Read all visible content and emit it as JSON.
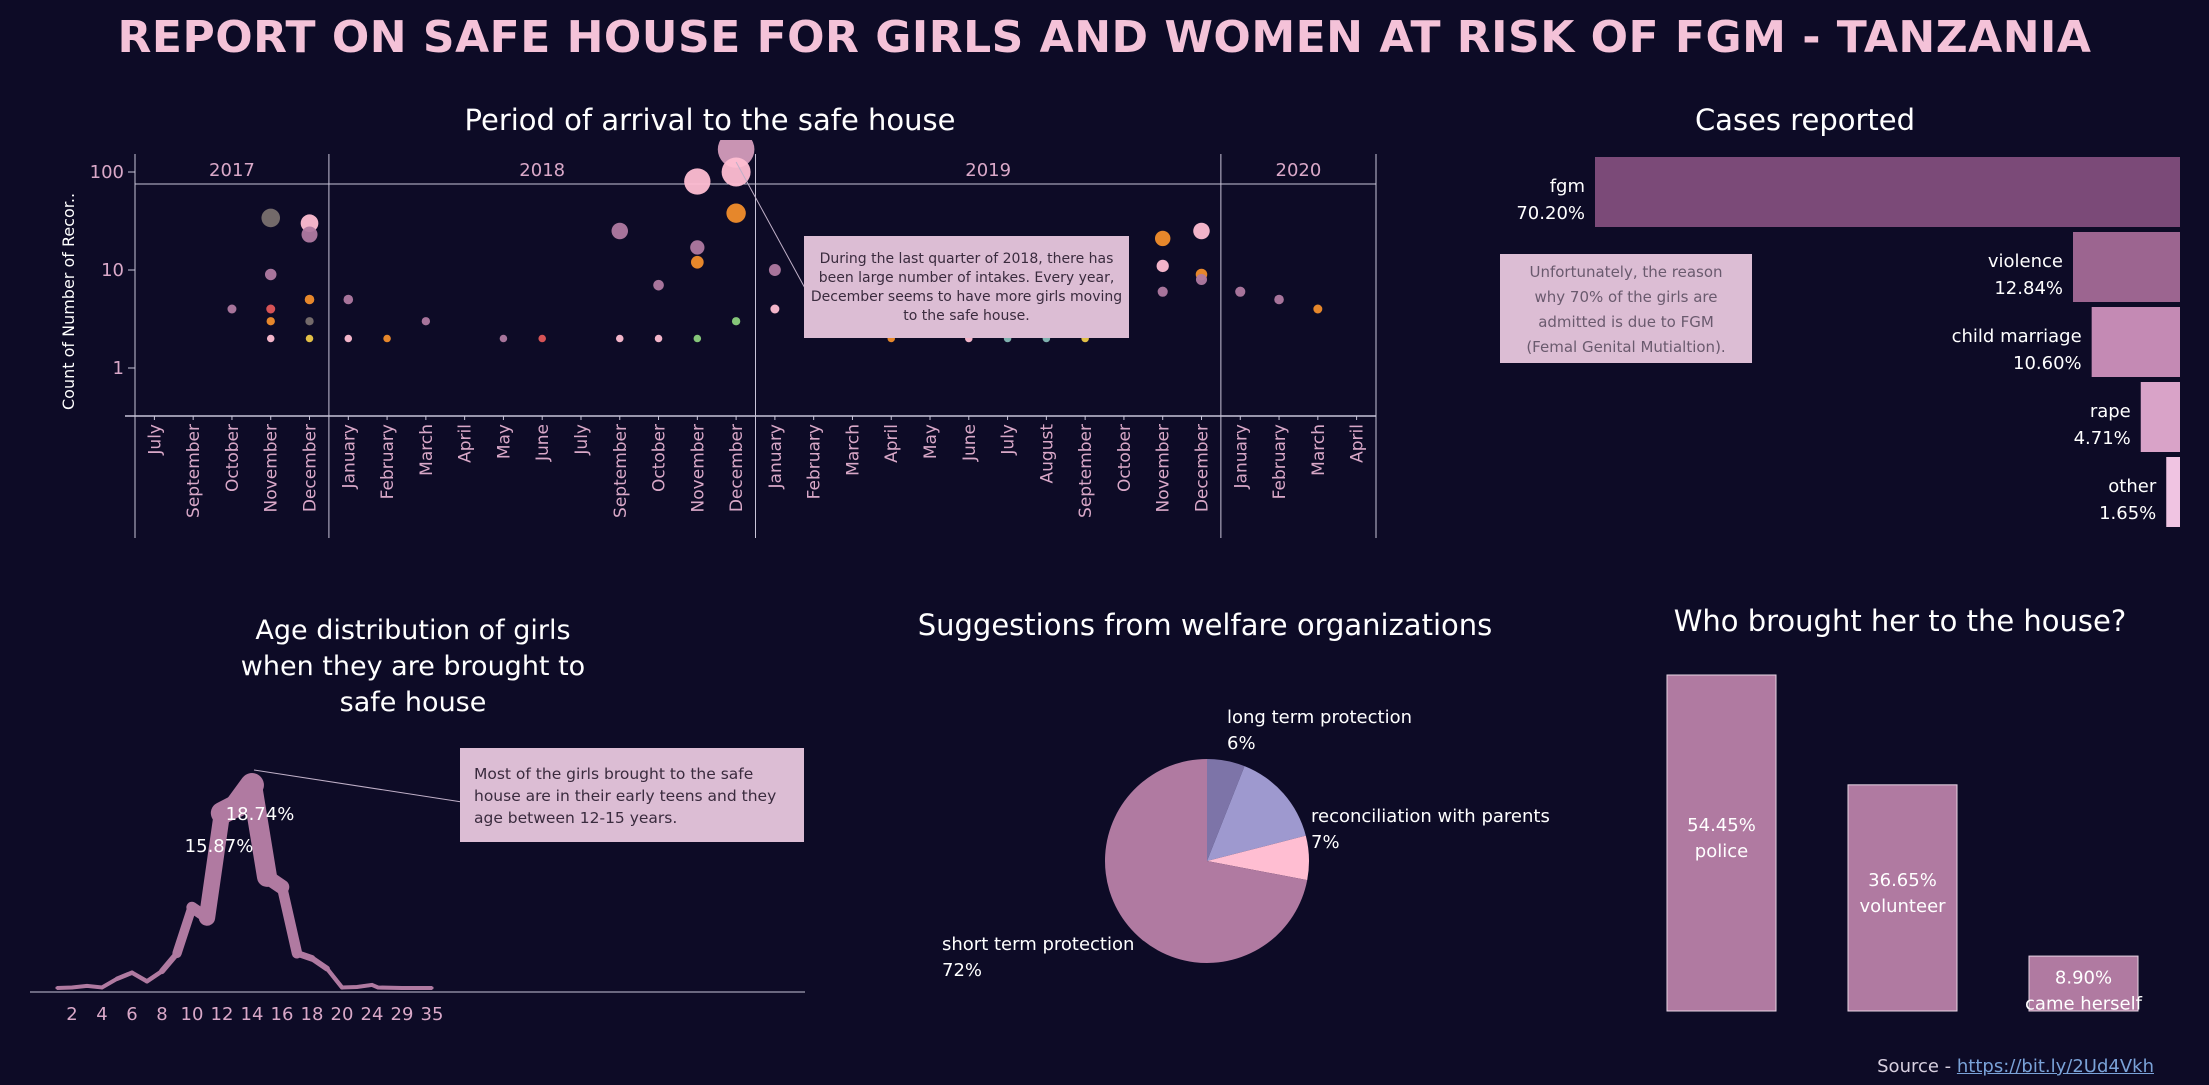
{
  "title": "REPORT ON SAFE HOUSE FOR GIRLS AND WOMEN AT RISK OF FGM - TANZANIA",
  "source": {
    "label": "Source - ",
    "link_text": "https://bit.ly/2Ud4Vkh"
  },
  "colors": {
    "background": "#0d0b26",
    "title": "#f4c2d8",
    "accent_pink": "#b07aa1",
    "light_pink": "#ffbed2",
    "orange": "#f28e2b",
    "lavender": "#9e99cf",
    "gray": "#79706e"
  },
  "chart_data": [
    {
      "type": "scatter",
      "title": "Period of arrival to the safe house",
      "ylabel": "Count of Number of Recor..",
      "yscale": "log",
      "yticks": [
        "1",
        "10",
        "100"
      ],
      "years": [
        {
          "label": "2017",
          "months": [
            "July",
            "September",
            "October",
            "November",
            "December"
          ]
        },
        {
          "label": "2018",
          "months": [
            "January",
            "February",
            "March",
            "April",
            "May",
            "June",
            "July",
            "September",
            "October",
            "November",
            "December"
          ]
        },
        {
          "label": "2019",
          "months": [
            "January",
            "February",
            "March",
            "April",
            "May",
            "June",
            "July",
            "August",
            "September",
            "October",
            "November",
            "December"
          ]
        },
        {
          "label": "2020",
          "months": [
            "January",
            "February",
            "March",
            "April"
          ]
        }
      ],
      "points": [
        {
          "col": 2,
          "v": 4,
          "c": "#b07aa1"
        },
        {
          "col": 3,
          "v": 34,
          "c": "#79706e"
        },
        {
          "col": 3,
          "v": 9,
          "c": "#b07aa1"
        },
        {
          "col": 3,
          "v": 4,
          "c": "#e15759"
        },
        {
          "col": 3,
          "v": 3,
          "c": "#f28e2b"
        },
        {
          "col": 3,
          "v": 2,
          "c": "#ffbed2"
        },
        {
          "col": 4,
          "v": 30,
          "c": "#ffbed2"
        },
        {
          "col": 4,
          "v": 23,
          "c": "#b07aa1"
        },
        {
          "col": 4,
          "v": 5,
          "c": "#f28e2b"
        },
        {
          "col": 4,
          "v": 3,
          "c": "#79706e"
        },
        {
          "col": 4,
          "v": 2,
          "c": "#edc948"
        },
        {
          "col": 5,
          "v": 5,
          "c": "#b07aa1"
        },
        {
          "col": 5,
          "v": 2,
          "c": "#ffbed2"
        },
        {
          "col": 6,
          "v": 2,
          "c": "#f28e2b"
        },
        {
          "col": 7,
          "v": 3,
          "c": "#b07aa1"
        },
        {
          "col": 9,
          "v": 2,
          "c": "#b07aa1"
        },
        {
          "col": 10,
          "v": 2,
          "c": "#e15759"
        },
        {
          "col": 12,
          "v": 25,
          "c": "#b07aa1"
        },
        {
          "col": 12,
          "v": 2,
          "c": "#ffbed2"
        },
        {
          "col": 13,
          "v": 7,
          "c": "#b07aa1"
        },
        {
          "col": 13,
          "v": 2,
          "c": "#ffbed2"
        },
        {
          "col": 14,
          "v": 80,
          "c": "#ffbed2"
        },
        {
          "col": 14,
          "v": 17,
          "c": "#b07aa1"
        },
        {
          "col": 14,
          "v": 12,
          "c": "#f28e2b"
        },
        {
          "col": 14,
          "v": 2,
          "c": "#8cd17d"
        },
        {
          "col": 15,
          "v": 170,
          "c": "#d49cba"
        },
        {
          "col": 15,
          "v": 100,
          "c": "#ffbed2"
        },
        {
          "col": 15,
          "v": 38,
          "c": "#f28e2b"
        },
        {
          "col": 15,
          "v": 3,
          "c": "#8cd17d"
        },
        {
          "col": 16,
          "v": 10,
          "c": "#b07aa1"
        },
        {
          "col": 16,
          "v": 4,
          "c": "#ffbed2"
        },
        {
          "col": 17,
          "v": 5,
          "c": "#b07aa1"
        },
        {
          "col": 18,
          "v": 4,
          "c": "#b07aa1"
        },
        {
          "col": 19,
          "v": 2,
          "c": "#f28e2b"
        },
        {
          "col": 21,
          "v": 5,
          "c": "#b07aa1"
        },
        {
          "col": 21,
          "v": 4,
          "c": "#f28e2b"
        },
        {
          "col": 21,
          "v": 2,
          "c": "#ffbed2"
        },
        {
          "col": 22,
          "v": 4,
          "c": "#f28e2b"
        },
        {
          "col": 22,
          "v": 2,
          "c": "#86bcb6"
        },
        {
          "col": 23,
          "v": 3,
          "c": "#f28e2b"
        },
        {
          "col": 23,
          "v": 2,
          "c": "#86bcb6"
        },
        {
          "col": 24,
          "v": 2,
          "c": "#edc948"
        },
        {
          "col": 25,
          "v": 6,
          "c": "#b07aa1"
        },
        {
          "col": 25,
          "v": 3,
          "c": "#86bcb6"
        },
        {
          "col": 26,
          "v": 21,
          "c": "#f28e2b"
        },
        {
          "col": 26,
          "v": 11,
          "c": "#ffbed2"
        },
        {
          "col": 26,
          "v": 6,
          "c": "#b07aa1"
        },
        {
          "col": 27,
          "v": 25,
          "c": "#ffbed2"
        },
        {
          "col": 27,
          "v": 9,
          "c": "#f28e2b"
        },
        {
          "col": 27,
          "v": 8,
          "c": "#b07aa1"
        },
        {
          "col": 28,
          "v": 6,
          "c": "#b07aa1"
        },
        {
          "col": 29,
          "v": 5,
          "c": "#b07aa1"
        },
        {
          "col": 30,
          "v": 4,
          "c": "#f28e2b"
        }
      ],
      "annotation": "During the last quarter of 2018, there has been large number of intakes. Every year, December seems to have more girls moving to the safe house."
    },
    {
      "type": "bar",
      "title": "Cases reported",
      "categories": [
        "fgm",
        "violence",
        "child marriage",
        "rape",
        "other"
      ],
      "values": [
        70.2,
        12.84,
        10.6,
        4.71,
        1.65
      ],
      "value_labels": [
        "70.20%",
        "12.84%",
        "10.60%",
        "4.71%",
        "1.65%"
      ],
      "colors": [
        "#7b4a78",
        "#9c6590",
        "#c48ab4",
        "#d9a3c8",
        "#f0c4e2"
      ],
      "annotation": "Unfortunately, the reason why 70% of the girls are admitted is due to FGM (Femal Genital Mutialtion)."
    },
    {
      "type": "area",
      "title": "Age distribution of girls when they are brought to safe house",
      "x": [
        1,
        2,
        3,
        4,
        5,
        6,
        7,
        8,
        9,
        10,
        11,
        12,
        13,
        14,
        15,
        16,
        17,
        18,
        19,
        20,
        22,
        24,
        25,
        29,
        35
      ],
      "y": [
        0.2,
        0.3,
        0.6,
        0.3,
        2.0,
        3.2,
        1.5,
        3.5,
        7.0,
        16.0,
        14.0,
        34.5,
        36.0,
        40.0,
        22.0,
        20.0,
        7.0,
        6.0,
        4.0,
        0.3,
        0.4,
        0.8,
        0.3,
        0.2,
        0.2
      ],
      "xticks": [
        "2",
        "4",
        "6",
        "8",
        "10",
        "12",
        "14",
        "16",
        "18",
        "20",
        "24",
        "29",
        "35"
      ],
      "labels": [
        {
          "x": 12,
          "text": "15.87%"
        },
        {
          "x": 14,
          "text": "18.74%"
        }
      ],
      "annotation": "Most of the girls brought to the safe house are in their early teens and they age between 12-15 years."
    },
    {
      "type": "pie",
      "title": "Suggestions from welfare organizations",
      "slices": [
        {
          "label": "long term protection",
          "pct_label": "6%",
          "value": 6,
          "color": "#7d74a8"
        },
        {
          "label": "",
          "pct_label": "",
          "value": 15,
          "color": "#9e99cf"
        },
        {
          "label": "reconciliation with parents",
          "pct_label": "7%",
          "value": 7,
          "color": "#ffbed2"
        },
        {
          "label": "short term protection",
          "pct_label": "72%",
          "value": 72,
          "color": "#b07aa1"
        }
      ]
    },
    {
      "type": "bar",
      "title": "Who brought her to the house?",
      "categories": [
        "police",
        "volunteer",
        "came herself"
      ],
      "values": [
        54.45,
        36.65,
        8.9
      ],
      "value_labels": [
        "54.45%",
        "36.65%",
        "8.90%"
      ]
    }
  ]
}
